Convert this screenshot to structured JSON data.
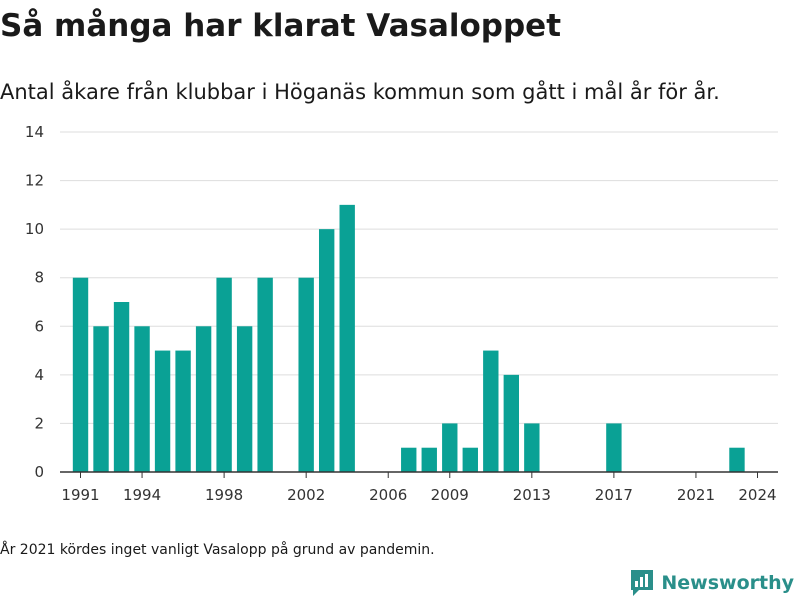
{
  "header": {
    "title": "Så många har klarat Vasaloppet",
    "subtitle": "Antal åkare från klubbar i Höganäs kommun som gått i mål år för år."
  },
  "footer": {
    "note": "År 2021 kördes inget vanligt Vasalopp på grund av pandemin.",
    "brand": "Newsworthy",
    "brand_icon": "newsworthy-logo-icon"
  },
  "colors": {
    "bar": "#0aa195",
    "grid": "#dddddd",
    "axis": "#333333",
    "brand": "#2a8f8a"
  },
  "chart_data": {
    "type": "bar",
    "title": "Så många har klarat Vasaloppet",
    "subtitle": "Antal åkare från klubbar i Höganäs kommun som gått i mål år för år.",
    "xlabel": "",
    "ylabel": "",
    "ylim": [
      0,
      14
    ],
    "yticks": [
      0,
      2,
      4,
      6,
      8,
      10,
      12,
      14
    ],
    "xticks": [
      1991,
      1994,
      1998,
      2002,
      2006,
      2009,
      2013,
      2017,
      2021,
      2024
    ],
    "xlim": [
      1990,
      2025
    ],
    "grid": true,
    "categories": [
      1991,
      1992,
      1993,
      1994,
      1995,
      1996,
      1997,
      1998,
      1999,
      2000,
      2002,
      2003,
      2004,
      2007,
      2008,
      2009,
      2010,
      2011,
      2012,
      2013,
      2017,
      2023
    ],
    "values": [
      8,
      6,
      7,
      6,
      5,
      5,
      6,
      8,
      6,
      8,
      8,
      10,
      11,
      1,
      1,
      2,
      1,
      5,
      4,
      2,
      2,
      1
    ]
  }
}
